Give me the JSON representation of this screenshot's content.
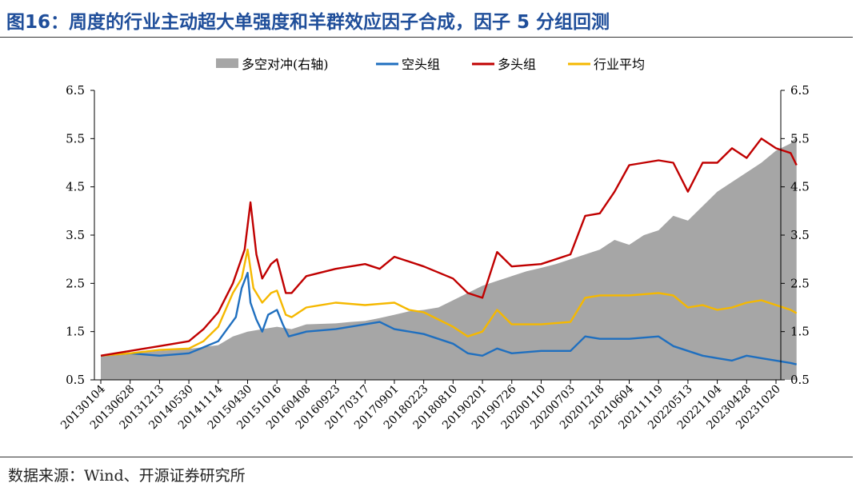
{
  "title": "图16：周度的行业主动超大单强度和羊群效应因子合成，因子 5 分组回测",
  "source": "数据来源：Wind、开源证券研究所",
  "chart_data": {
    "type": "line",
    "legend": {
      "placement": "top-center",
      "entries": [
        "多空对冲(右轴)",
        "空头组",
        "多头组",
        "行业平均"
      ]
    },
    "y_left": {
      "min": 0.5,
      "max": 6.5,
      "ticks": [
        "0.5",
        "1.5",
        "2.5",
        "3.5",
        "4.5",
        "5.5",
        "6.5"
      ]
    },
    "y_right": {
      "min": 0.5,
      "max": 6.5,
      "ticks": [
        "0.5",
        "1.5",
        "2.5",
        "3.5",
        "4.5",
        "5.5",
        "6.5"
      ]
    },
    "x_ticks": [
      "20130104",
      "20130628",
      "20131213",
      "20140530",
      "20141114",
      "20150430",
      "20151016",
      "20160408",
      "20160923",
      "20170317",
      "20170901",
      "20180223",
      "20180810",
      "20190201",
      "20190726",
      "20200110",
      "20200703",
      "20201218",
      "20210604",
      "20211119",
      "20220513",
      "20221104",
      "20230428",
      "20231020"
    ],
    "colors": {
      "hedge": "#a6a6a6",
      "short": "#1f6fbf",
      "long": "#c00000",
      "average": "#f5b800"
    },
    "series": [
      {
        "name": "多空对冲(右轴)",
        "kind": "area",
        "axis": "right",
        "points": [
          [
            0,
            1.0
          ],
          [
            0.5,
            1.02
          ],
          [
            1,
            1.04
          ],
          [
            2,
            1.1
          ],
          [
            3,
            1.14
          ],
          [
            4,
            1.22
          ],
          [
            4.5,
            1.4
          ],
          [
            5,
            1.5
          ],
          [
            5.5,
            1.55
          ],
          [
            6,
            1.6
          ],
          [
            6.5,
            1.55
          ],
          [
            7,
            1.65
          ],
          [
            8,
            1.67
          ],
          [
            8.5,
            1.7
          ],
          [
            9,
            1.72
          ],
          [
            9.5,
            1.78
          ],
          [
            10,
            1.85
          ],
          [
            10.5,
            1.92
          ],
          [
            11,
            1.95
          ],
          [
            11.5,
            2.0
          ],
          [
            12,
            2.15
          ],
          [
            12.5,
            2.3
          ],
          [
            13,
            2.45
          ],
          [
            13.5,
            2.55
          ],
          [
            14,
            2.65
          ],
          [
            14.5,
            2.75
          ],
          [
            15,
            2.82
          ],
          [
            15.5,
            2.9
          ],
          [
            16,
            3.0
          ],
          [
            16.5,
            3.1
          ],
          [
            17,
            3.2
          ],
          [
            17.5,
            3.4
          ],
          [
            18,
            3.3
          ],
          [
            18.5,
            3.5
          ],
          [
            19,
            3.6
          ],
          [
            19.5,
            3.9
          ],
          [
            20,
            3.8
          ],
          [
            20.5,
            4.1
          ],
          [
            21,
            4.4
          ],
          [
            21.5,
            4.6
          ],
          [
            22,
            4.8
          ],
          [
            22.5,
            5.0
          ],
          [
            23,
            5.25
          ],
          [
            23.5,
            5.4
          ],
          [
            23.7,
            5.55
          ]
        ]
      },
      {
        "name": "空头组",
        "kind": "line",
        "axis": "left",
        "points": [
          [
            0,
            1.0
          ],
          [
            1,
            1.05
          ],
          [
            2,
            1.0
          ],
          [
            3,
            1.05
          ],
          [
            4,
            1.3
          ],
          [
            4.6,
            1.8
          ],
          [
            4.8,
            2.4
          ],
          [
            5,
            2.72
          ],
          [
            5.1,
            2.1
          ],
          [
            5.3,
            1.75
          ],
          [
            5.5,
            1.5
          ],
          [
            5.7,
            1.85
          ],
          [
            6,
            1.95
          ],
          [
            6.2,
            1.65
          ],
          [
            6.4,
            1.4
          ],
          [
            7,
            1.5
          ],
          [
            8,
            1.55
          ],
          [
            9,
            1.65
          ],
          [
            9.5,
            1.7
          ],
          [
            10,
            1.55
          ],
          [
            11,
            1.45
          ],
          [
            12,
            1.25
          ],
          [
            12.5,
            1.05
          ],
          [
            13,
            1.0
          ],
          [
            13.5,
            1.15
          ],
          [
            14,
            1.05
          ],
          [
            15,
            1.1
          ],
          [
            16,
            1.1
          ],
          [
            16.5,
            1.4
          ],
          [
            17,
            1.35
          ],
          [
            18,
            1.35
          ],
          [
            19,
            1.4
          ],
          [
            19.5,
            1.2
          ],
          [
            20,
            1.1
          ],
          [
            20.5,
            1.0
          ],
          [
            21,
            0.95
          ],
          [
            21.5,
            0.9
          ],
          [
            22,
            1.0
          ],
          [
            22.5,
            0.95
          ],
          [
            23,
            0.9
          ],
          [
            23.5,
            0.85
          ],
          [
            23.7,
            0.82
          ]
        ]
      },
      {
        "name": "多头组",
        "kind": "line",
        "axis": "left",
        "points": [
          [
            0,
            1.0
          ],
          [
            1,
            1.1
          ],
          [
            2,
            1.2
          ],
          [
            3,
            1.3
          ],
          [
            3.5,
            1.55
          ],
          [
            4,
            1.9
          ],
          [
            4.5,
            2.5
          ],
          [
            4.9,
            3.2
          ],
          [
            5.1,
            4.18
          ],
          [
            5.3,
            3.1
          ],
          [
            5.5,
            2.6
          ],
          [
            5.8,
            2.9
          ],
          [
            6,
            3.0
          ],
          [
            6.3,
            2.3
          ],
          [
            6.5,
            2.3
          ],
          [
            7,
            2.65
          ],
          [
            8,
            2.8
          ],
          [
            9,
            2.9
          ],
          [
            9.5,
            2.8
          ],
          [
            10,
            3.05
          ],
          [
            11,
            2.85
          ],
          [
            12,
            2.6
          ],
          [
            12.5,
            2.3
          ],
          [
            13,
            2.2
          ],
          [
            13.5,
            3.15
          ],
          [
            14,
            2.85
          ],
          [
            15,
            2.9
          ],
          [
            16,
            3.1
          ],
          [
            16.5,
            3.9
          ],
          [
            17,
            3.95
          ],
          [
            17.5,
            4.4
          ],
          [
            18,
            4.95
          ],
          [
            19,
            5.05
          ],
          [
            19.5,
            5.0
          ],
          [
            20,
            4.4
          ],
          [
            20.5,
            5.0
          ],
          [
            21,
            5.0
          ],
          [
            21.5,
            5.3
          ],
          [
            22,
            5.1
          ],
          [
            22.5,
            5.5
          ],
          [
            23,
            5.3
          ],
          [
            23.5,
            5.2
          ],
          [
            23.7,
            4.95
          ]
        ]
      },
      {
        "name": "行业平均",
        "kind": "line",
        "axis": "left",
        "points": [
          [
            0,
            1.0
          ],
          [
            1,
            1.05
          ],
          [
            2,
            1.12
          ],
          [
            3,
            1.15
          ],
          [
            3.5,
            1.3
          ],
          [
            4,
            1.6
          ],
          [
            4.5,
            2.3
          ],
          [
            4.8,
            2.6
          ],
          [
            5,
            3.2
          ],
          [
            5.2,
            2.4
          ],
          [
            5.5,
            2.1
          ],
          [
            5.8,
            2.3
          ],
          [
            6,
            2.35
          ],
          [
            6.3,
            1.85
          ],
          [
            6.5,
            1.8
          ],
          [
            7,
            2.0
          ],
          [
            8,
            2.1
          ],
          [
            9,
            2.05
          ],
          [
            10,
            2.1
          ],
          [
            10.5,
            1.95
          ],
          [
            11,
            1.9
          ],
          [
            12,
            1.6
          ],
          [
            12.5,
            1.4
          ],
          [
            13,
            1.5
          ],
          [
            13.5,
            1.95
          ],
          [
            14,
            1.65
          ],
          [
            15,
            1.65
          ],
          [
            16,
            1.7
          ],
          [
            16.5,
            2.2
          ],
          [
            17,
            2.25
          ],
          [
            18,
            2.25
          ],
          [
            19,
            2.3
          ],
          [
            19.5,
            2.25
          ],
          [
            20,
            2.0
          ],
          [
            20.5,
            2.05
          ],
          [
            21,
            1.95
          ],
          [
            21.5,
            2.0
          ],
          [
            22,
            2.1
          ],
          [
            22.5,
            2.15
          ],
          [
            23,
            2.05
          ],
          [
            23.5,
            1.95
          ],
          [
            23.7,
            1.88
          ]
        ]
      }
    ]
  }
}
